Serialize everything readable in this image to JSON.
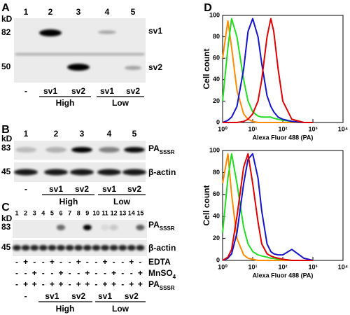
{
  "panels": {
    "A": {
      "label": "A",
      "unit": "kD",
      "lanes": [
        "1",
        "2",
        "3",
        "4",
        "5"
      ],
      "markers": [
        "82",
        "50"
      ],
      "bands": [
        "sv1",
        "sv2"
      ],
      "samples": [
        "-",
        "sv1",
        "sv2",
        "sv1",
        "sv2"
      ],
      "groups": [
        "High",
        "Low"
      ]
    },
    "B": {
      "label": "B",
      "unit": "kD",
      "lanes": [
        "1",
        "2",
        "3",
        "4",
        "5"
      ],
      "markers": [
        "83",
        "45"
      ],
      "bands": [
        {
          "text": "PA",
          "sub": "SSSR"
        },
        {
          "text": "β-actin"
        }
      ],
      "samples": [
        "-",
        "sv1",
        "sv2",
        "sv1",
        "sv2"
      ],
      "groups": [
        "High",
        "Low"
      ]
    },
    "C": {
      "label": "C",
      "unit": "kD",
      "lanes": [
        "1",
        "2",
        "3",
        "4",
        "5",
        "6",
        "7",
        "8",
        "9",
        "10",
        "11",
        "12",
        "13",
        "14",
        "15"
      ],
      "markers": [
        "83",
        "45"
      ],
      "bands": [
        {
          "text": "PA",
          "sub": "SSSR"
        },
        {
          "text": "β-actin"
        }
      ],
      "rows": [
        {
          "text": "EDTA",
          "signs": [
            "-",
            "+",
            "-",
            "-",
            "+",
            "-",
            "-",
            "+",
            "-",
            "-",
            "+",
            "-",
            "-",
            "+",
            "-"
          ]
        },
        {
          "text": "MnSO",
          "sub": "4",
          "signs": [
            "-",
            "-",
            "+",
            "-",
            "-",
            "+",
            "-",
            "-",
            "+",
            "-",
            "-",
            "+",
            "-",
            "-",
            "+"
          ]
        },
        {
          "text": "PA",
          "sub": "SSSR",
          "signs": [
            "-",
            "+",
            "+",
            "-",
            "+",
            "+",
            "-",
            "+",
            "+",
            "-",
            "+",
            "+",
            "-",
            "+",
            "+"
          ]
        }
      ],
      "samples": [
        "-",
        "sv1",
        "sv2",
        "sv1",
        "sv2"
      ],
      "groups": [
        "High",
        "Low"
      ]
    },
    "D": {
      "label": "D"
    }
  },
  "chart_data": [
    {
      "type": "line",
      "xscale": "log",
      "xlabel": "Alexa Fluor 488 (PA)",
      "ylabel": "Cell count",
      "x": [
        1,
        1.5,
        2,
        3,
        5,
        7,
        10,
        15,
        20,
        30,
        40,
        50,
        70,
        100,
        200,
        500,
        1000
      ],
      "series": [
        {
          "color": "#ff8c00",
          "values": [
            60,
            95,
            70,
            30,
            8,
            3,
            1,
            0,
            0,
            0,
            0,
            0,
            0,
            0,
            0,
            0,
            0
          ]
        },
        {
          "color": "#22dd22",
          "values": [
            20,
            70,
            97,
            80,
            40,
            20,
            10,
            6,
            5,
            5,
            5,
            4,
            3,
            2,
            1,
            0,
            0
          ]
        },
        {
          "color": "#1414c8",
          "values": [
            0,
            2,
            5,
            15,
            50,
            85,
            97,
            80,
            55,
            25,
            15,
            10,
            5,
            3,
            1,
            0,
            0
          ]
        },
        {
          "color": "#dd0000",
          "values": [
            0,
            0,
            0,
            0,
            1,
            3,
            8,
            20,
            40,
            80,
            97,
            85,
            50,
            20,
            3,
            0,
            0
          ]
        }
      ],
      "xlim": [
        1,
        10000
      ],
      "xticks": [
        {
          "value": 1,
          "label": "10⁰"
        },
        {
          "value": 10,
          "label": "10¹"
        },
        {
          "value": 100,
          "label": "10²"
        },
        {
          "value": 1000,
          "label": "10³"
        },
        {
          "value": 10000,
          "label": "10⁴"
        }
      ],
      "ylim": [
        0,
        100
      ],
      "yticks": [
        0,
        20,
        40,
        60,
        80,
        100
      ]
    },
    {
      "type": "line",
      "xscale": "log",
      "xlabel": "Alexa Fluor 488 (PA)",
      "ylabel": "Cell count",
      "x": [
        1,
        1.5,
        2,
        3,
        5,
        7,
        10,
        15,
        20,
        30,
        40,
        50,
        70,
        100,
        200,
        500,
        1000
      ],
      "series": [
        {
          "color": "#ff8c00",
          "values": [
            70,
            97,
            60,
            20,
            5,
            2,
            1,
            0,
            0,
            0,
            0,
            0,
            0,
            0,
            0,
            0,
            0
          ]
        },
        {
          "color": "#22dd22",
          "values": [
            25,
            75,
            97,
            70,
            30,
            15,
            8,
            5,
            4,
            3,
            2,
            2,
            1,
            1,
            0,
            0,
            0
          ]
        },
        {
          "color": "#1414c8",
          "values": [
            0,
            2,
            6,
            25,
            70,
            92,
            97,
            75,
            45,
            15,
            8,
            6,
            5,
            5,
            10,
            2,
            0
          ]
        },
        {
          "color": "#dd0000",
          "values": [
            0,
            3,
            10,
            40,
            85,
            97,
            70,
            35,
            15,
            6,
            4,
            3,
            2,
            1,
            0,
            0,
            0
          ]
        }
      ],
      "xlim": [
        1,
        10000
      ],
      "xticks": [
        {
          "value": 1,
          "label": "10⁰"
        },
        {
          "value": 10,
          "label": "10¹"
        },
        {
          "value": 100,
          "label": "10²"
        },
        {
          "value": 1000,
          "label": "10³"
        },
        {
          "value": 10000,
          "label": "10⁴"
        }
      ],
      "ylim": [
        0,
        100
      ],
      "yticks": [
        0,
        20,
        40,
        60,
        80,
        100
      ]
    }
  ]
}
